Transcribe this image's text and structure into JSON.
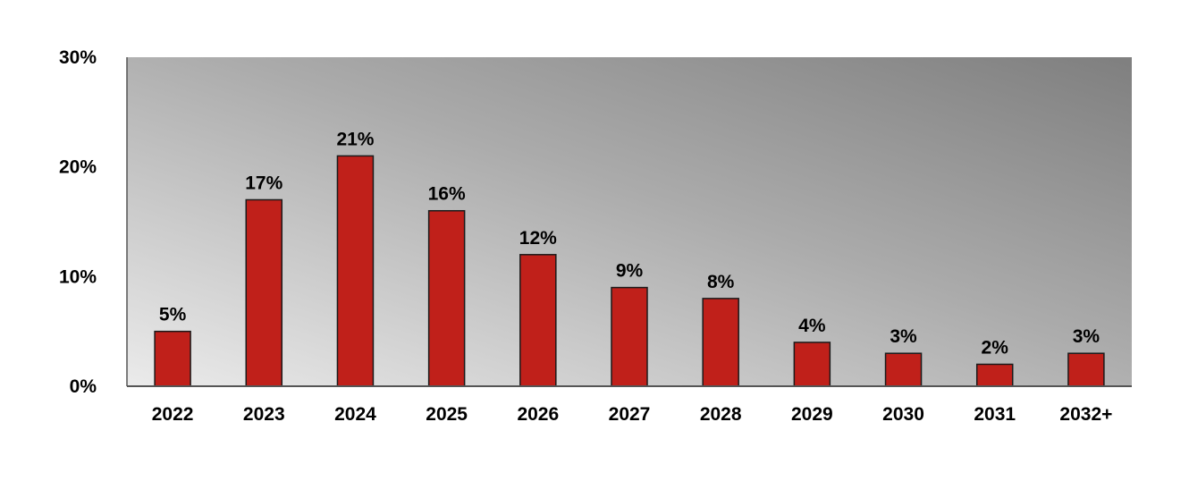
{
  "chart_data": {
    "type": "bar",
    "categories": [
      "2022",
      "2023",
      "2024",
      "2025",
      "2026",
      "2027",
      "2028",
      "2029",
      "2030",
      "2031",
      "2032+"
    ],
    "values": [
      5,
      17,
      21,
      16,
      12,
      9,
      8,
      4,
      3,
      2,
      3
    ],
    "data_labels": [
      "5%",
      "17%",
      "21%",
      "16%",
      "12%",
      "9%",
      "8%",
      "4%",
      "3%",
      "2%",
      "3%"
    ],
    "title": "",
    "xlabel": "",
    "ylabel": "",
    "ylim": [
      0,
      30
    ],
    "yticks": [
      0,
      10,
      20,
      30
    ],
    "ytick_labels": [
      "0%",
      "10%",
      "20%",
      "30%"
    ],
    "grid": false,
    "bar_color": "#c0201a",
    "bar_edge_color": "#1a1a1a",
    "plot_background": "gradient light-gray to dark-gray"
  }
}
